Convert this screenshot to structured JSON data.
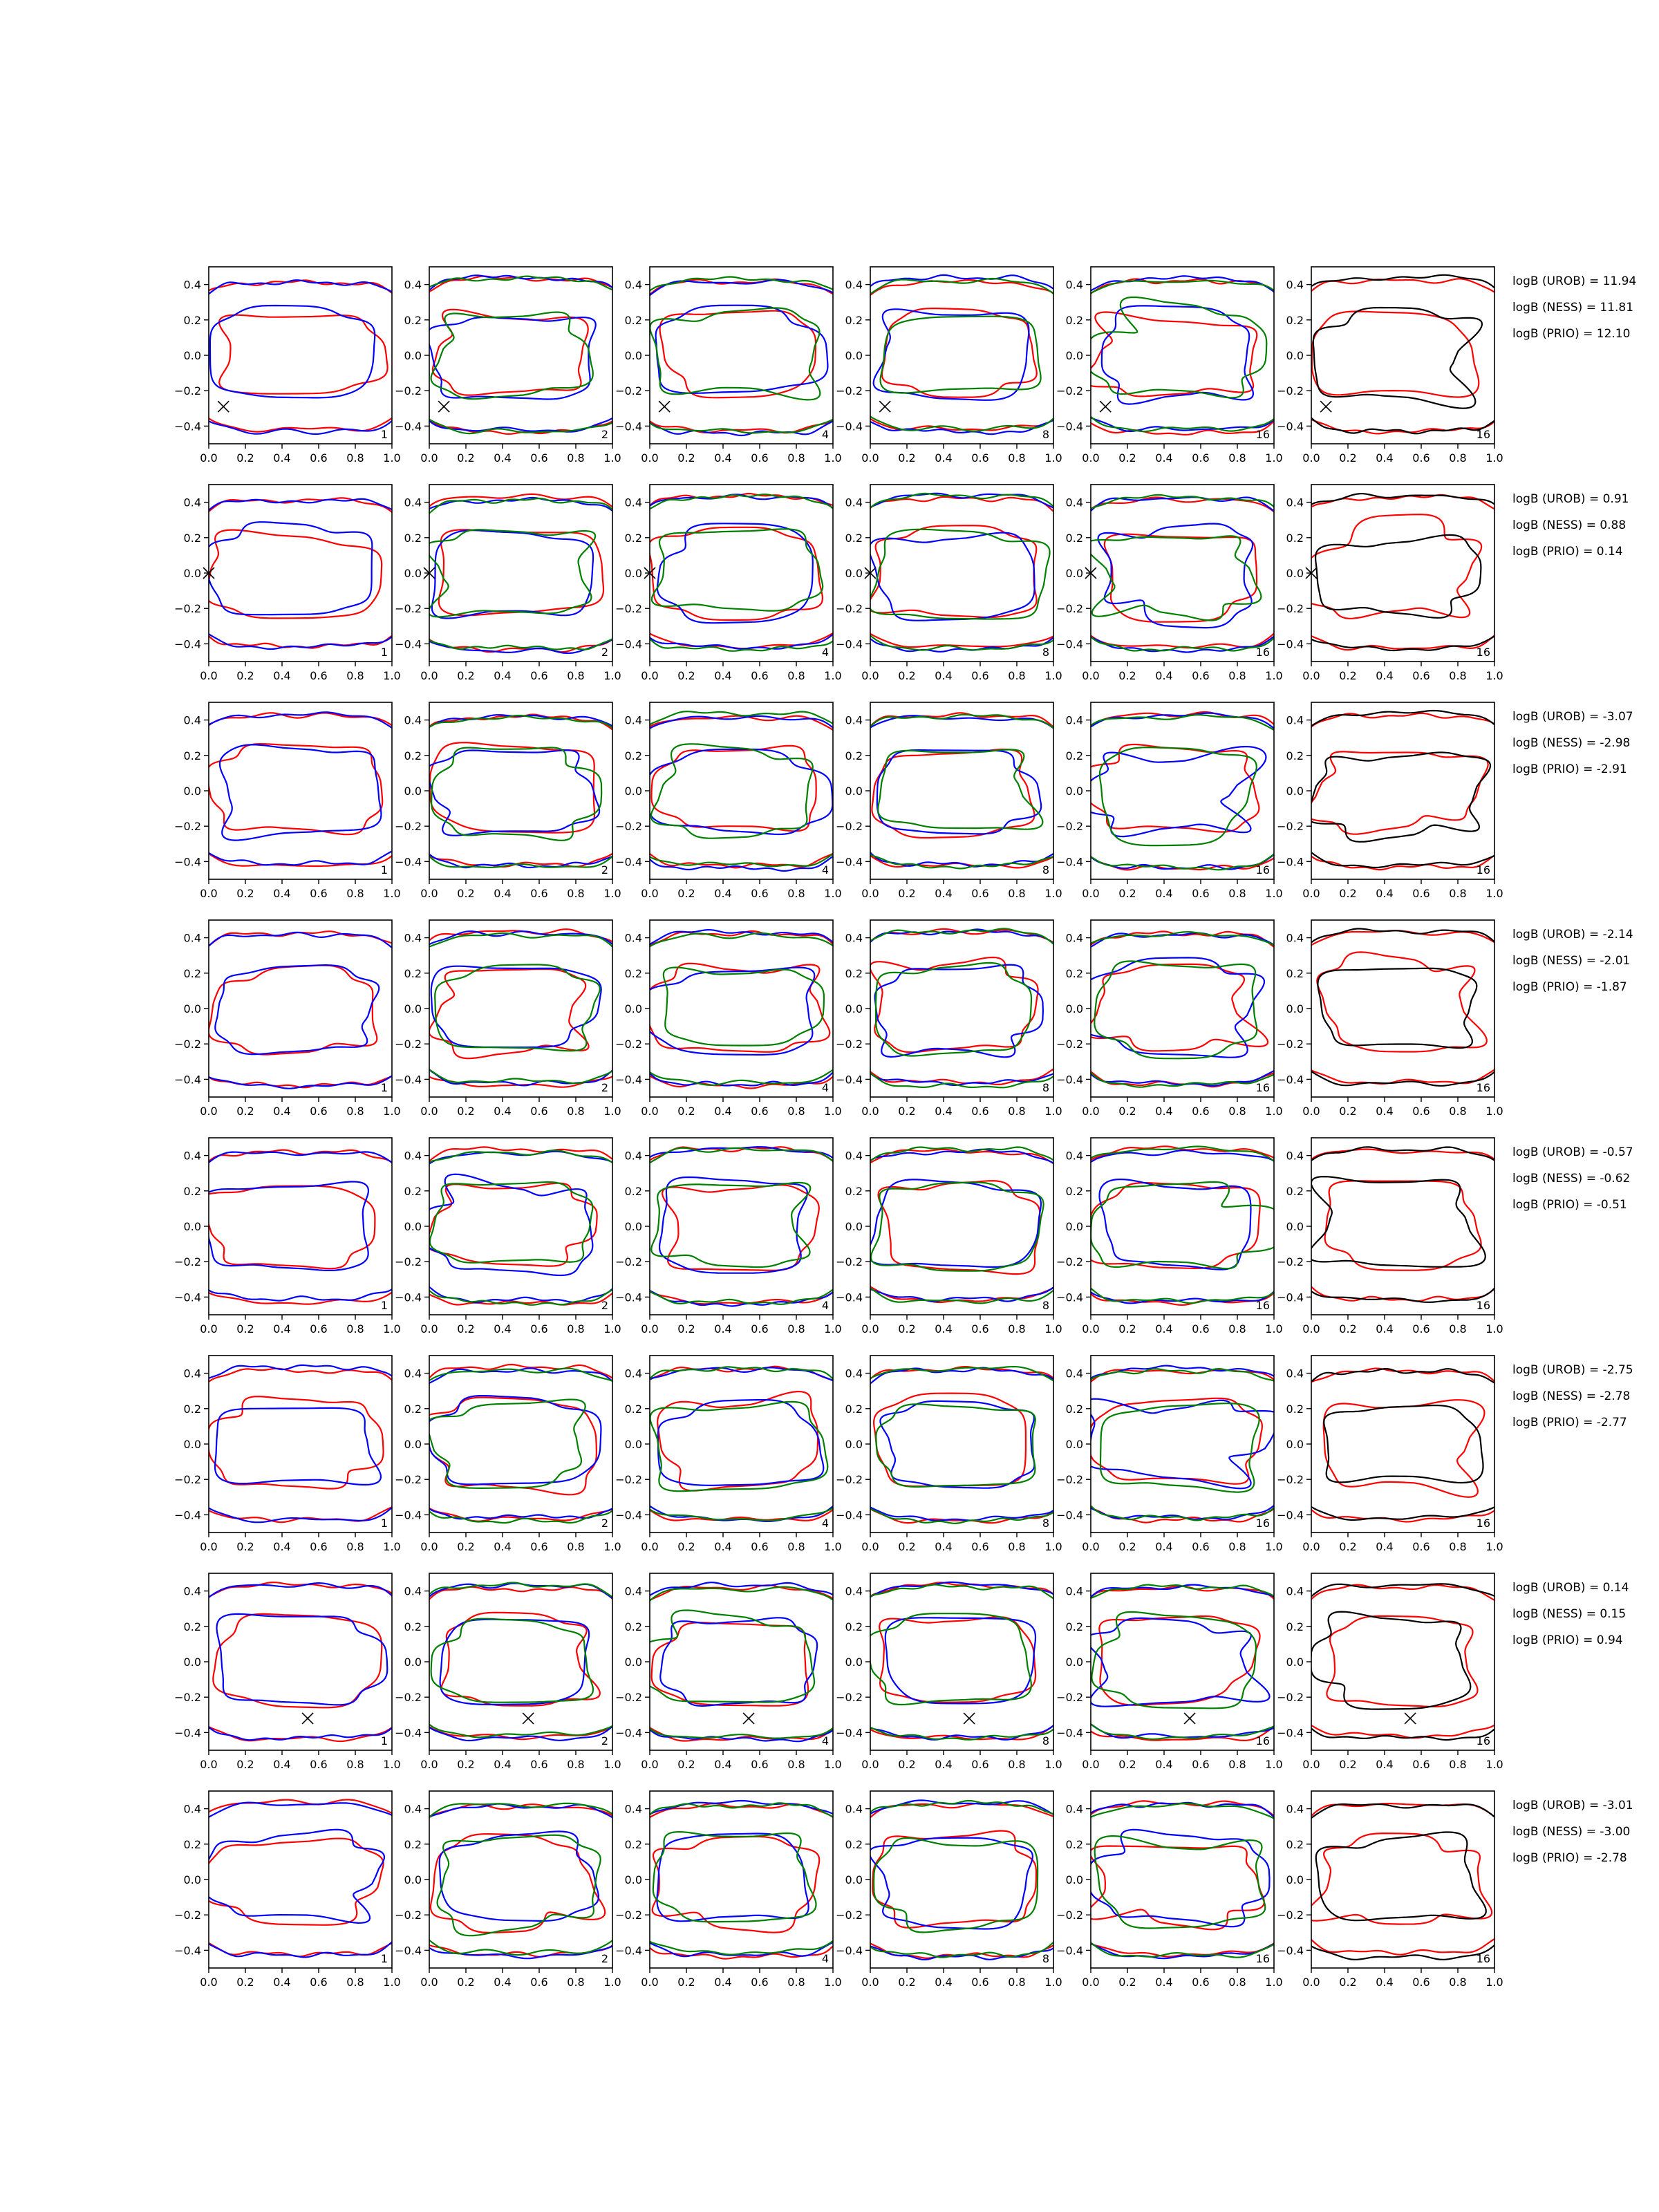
{
  "chart_data": {
    "type": "line",
    "description_grid": {
      "rows": 8,
      "cols": 6
    },
    "xlim": [
      0.0,
      1.0
    ],
    "ylim": [
      -0.5,
      0.5
    ],
    "x_ticks": [
      0.0,
      0.2,
      0.4,
      0.6,
      0.8,
      1.0
    ],
    "x_tick_labels": [
      "0.0",
      "0.2",
      "0.4",
      "0.6",
      "0.8",
      "1.0"
    ],
    "y_ticks": [
      0.4,
      0.2,
      0.0,
      -0.2,
      -0.4
    ],
    "y_tick_labels": [
      "0.4",
      "0.2",
      "0.0",
      "−0.2",
      "−0.4"
    ],
    "panel_labels": [
      "1",
      "2",
      "4",
      "8",
      "16",
      "16"
    ],
    "colors": {
      "series_a": "#ff0000",
      "series_b": "#0000ff",
      "series_c": "#008000",
      "series_d": "#000000"
    },
    "rows": [
      {
        "marker": [
          0.08,
          -0.29
        ],
        "annotations": [
          "logB (UROB) = 11.94",
          "logB (NESS) = 11.81",
          "logB (PRIO) = 12.10"
        ]
      },
      {
        "marker": [
          0.0,
          0.0
        ],
        "annotations": [
          "logB (UROB) = 0.91",
          "logB (NESS) = 0.88",
          "logB (PRIO) = 0.14"
        ]
      },
      {
        "marker": null,
        "annotations": [
          "logB (UROB) = -3.07",
          "logB (NESS) = -2.98",
          "logB (PRIO) = -2.91"
        ]
      },
      {
        "marker": null,
        "annotations": [
          "logB (UROB) = -2.14",
          "logB (NESS) = -2.01",
          "logB (PRIO) = -1.87"
        ]
      },
      {
        "marker": null,
        "annotations": [
          "logB (UROB) = -0.57",
          "logB (NESS) = -0.62",
          "logB (PRIO) = -0.51"
        ]
      },
      {
        "marker": null,
        "annotations": [
          "logB (UROB) = -2.75",
          "logB (NESS) = -2.78",
          "logB (PRIO) = -2.77"
        ]
      },
      {
        "marker": [
          0.54,
          -0.32
        ],
        "annotations": [
          "logB (UROB) = 0.14",
          "logB (NESS) = 0.15",
          "logB (PRIO) = 0.94"
        ]
      },
      {
        "marker": null,
        "annotations": [
          "logB (UROB) = -3.01",
          "logB (NESS) = -3.00",
          "logB (PRIO) = -2.78"
        ]
      }
    ]
  }
}
